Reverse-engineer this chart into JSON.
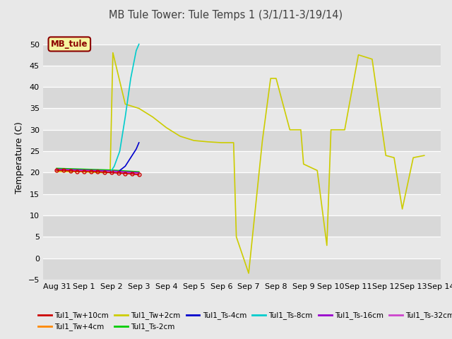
{
  "title": "MB Tule Tower: Tule Temps 1 (3/1/11-3/19/14)",
  "ylabel": "Temperature (C)",
  "ylim": [
    -5,
    52
  ],
  "yticks": [
    -5,
    0,
    5,
    10,
    15,
    20,
    25,
    30,
    35,
    40,
    45,
    50
  ],
  "x_tick_labels": [
    "Aug 31",
    "Sep 1",
    "Sep 2",
    "Sep 3",
    "Sep 4",
    "Sep 5",
    "Sep 6",
    "Sep 7",
    "Sep 8",
    "Sep 9",
    "Sep 10",
    "Sep 11",
    "Sep 12",
    "Sep 13",
    "Sep 14"
  ],
  "fig_bg": "#e8e8e8",
  "plot_bg": "#e8e8e8",
  "grid_bg_alt": "#d8d8d8",
  "title_color": "#404040",
  "yellow_x": [
    0,
    0.4,
    0.8,
    1.2,
    1.6,
    1.95,
    2.05,
    2.5,
    3.0,
    3.5,
    4.0,
    4.5,
    5.0,
    5.5,
    6.0,
    6.45,
    6.55,
    7.0,
    7.5,
    7.8,
    8.0,
    8.5,
    8.9,
    9.0,
    9.5,
    9.85,
    10.0,
    10.5,
    11.0,
    11.5,
    12.0,
    12.3,
    12.6,
    13.0,
    13.4
  ],
  "yellow_y": [
    20.2,
    20.2,
    20.2,
    20.1,
    20.0,
    20.0,
    48.0,
    36.0,
    35.0,
    33.0,
    30.5,
    28.5,
    27.5,
    27.2,
    27.0,
    27.0,
    5.0,
    -3.5,
    27.5,
    42.0,
    42.0,
    30.0,
    30.0,
    22.0,
    20.5,
    3.0,
    30.0,
    30.0,
    47.5,
    46.5,
    24.0,
    23.5,
    11.5,
    23.5,
    24.0
  ],
  "cyan_x": [
    2.0,
    2.1,
    2.3,
    2.5,
    2.7,
    2.9,
    3.0
  ],
  "cyan_y": [
    20.5,
    21.5,
    25.0,
    33.0,
    42.0,
    48.5,
    50.0
  ],
  "blue_x": [
    2.3,
    2.5,
    2.7,
    2.9,
    3.0
  ],
  "blue_y": [
    20.5,
    21.5,
    23.5,
    25.5,
    27.0
  ],
  "red_x": [
    0,
    0.25,
    0.5,
    0.75,
    1.0,
    1.25,
    1.5,
    1.75,
    2.0,
    2.25,
    2.5,
    2.75,
    3.0
  ],
  "red_y": [
    20.5,
    20.5,
    20.4,
    20.3,
    20.3,
    20.3,
    20.2,
    20.1,
    20.0,
    19.9,
    19.8,
    19.7,
    19.5
  ],
  "orange_x": [
    0,
    0.5,
    1.0,
    1.5,
    2.0,
    2.5,
    3.0
  ],
  "orange_y": [
    20.7,
    20.6,
    20.5,
    20.4,
    20.3,
    20.1,
    20.0
  ],
  "green_x": [
    0,
    0.5,
    1.0,
    1.5,
    2.0,
    2.5,
    3.0
  ],
  "green_y": [
    21.0,
    20.9,
    20.8,
    20.7,
    20.6,
    20.4,
    20.2
  ],
  "purple_x": [
    0,
    0.5,
    1.0,
    1.5,
    2.0,
    2.5,
    3.0
  ],
  "purple_y": [
    20.8,
    20.7,
    20.6,
    20.5,
    20.4,
    20.2,
    20.0
  ],
  "magenta_x": [
    0,
    0.5,
    1.0,
    1.5,
    2.0,
    2.5,
    3.0
  ],
  "magenta_y": [
    20.6,
    20.5,
    20.4,
    20.3,
    20.2,
    20.0,
    19.8
  ],
  "bottom_legend": [
    {
      "label": "Tul1_Tw+10cm",
      "color": "#cc0000"
    },
    {
      "label": "Tul1_Tw+4cm",
      "color": "#ff8800"
    },
    {
      "label": "Tul1_Tw+2cm",
      "color": "#cccc00"
    },
    {
      "label": "Tul1_Ts-2cm",
      "color": "#00cc00"
    },
    {
      "label": "Tul1_Ts-4cm",
      "color": "#0000cc"
    },
    {
      "label": "Tul1_Ts-8cm",
      "color": "#00cccc"
    },
    {
      "label": "Tul1_Ts-16cm",
      "color": "#9900cc"
    },
    {
      "label": "Tul1_Ts-32cm",
      "color": "#cc44cc"
    }
  ]
}
